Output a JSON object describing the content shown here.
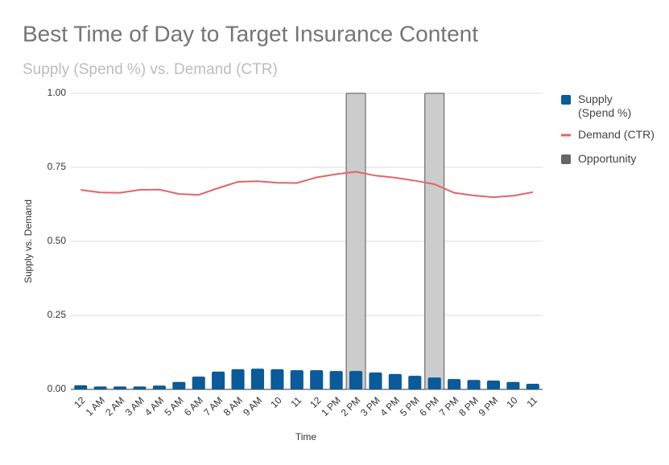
{
  "chart_data": {
    "type": "combo",
    "title": "Best Time of Day to Target Insurance Content",
    "subtitle": "Supply (Spend %) vs. Demand (CTR)",
    "x_label": "Time",
    "y_label": "Supply vs. Demand",
    "categories": [
      "12",
      "1 AM",
      "2 AM",
      "3 AM",
      "4 AM",
      "5 AM",
      "6 AM",
      "7 AM",
      "8 AM",
      "9 AM",
      "10",
      "11",
      "12",
      "1 PM",
      "2 PM",
      "3 PM",
      "4 PM",
      "5 PM",
      "6 PM",
      "7 PM",
      "8 PM",
      "9 PM",
      "10",
      "11"
    ],
    "series": [
      {
        "name": "Supply (Spend %)",
        "type": "bar",
        "color": "#0b5a99",
        "values": [
          0.014,
          0.01,
          0.01,
          0.01,
          0.013,
          0.025,
          0.043,
          0.06,
          0.068,
          0.07,
          0.068,
          0.065,
          0.065,
          0.062,
          0.062,
          0.057,
          0.052,
          0.046,
          0.04,
          0.035,
          0.032,
          0.03,
          0.025,
          0.019
        ]
      },
      {
        "name": "Demand (CTR)",
        "type": "line",
        "color": "#e06666",
        "values": [
          0.674,
          0.665,
          0.664,
          0.674,
          0.675,
          0.66,
          0.657,
          0.68,
          0.701,
          0.703,
          0.698,
          0.697,
          0.716,
          0.727,
          0.735,
          0.722,
          0.715,
          0.705,
          0.693,
          0.664,
          0.655,
          0.649,
          0.654,
          0.666
        ]
      },
      {
        "name": "Opportunity",
        "type": "bar",
        "color": "#cccccc",
        "values": [
          null,
          null,
          null,
          null,
          null,
          null,
          null,
          null,
          null,
          null,
          null,
          null,
          null,
          null,
          1,
          null,
          null,
          null,
          1,
          null,
          null,
          null,
          null,
          null
        ]
      }
    ],
    "ylim": [
      0,
      1
    ],
    "yticks": [
      {
        "value": 0,
        "label": "0.00"
      },
      {
        "value": 0.25,
        "label": "0.25"
      },
      {
        "value": 0.5,
        "label": "0.50"
      },
      {
        "value": 0.75,
        "label": "0.75"
      },
      {
        "value": 1,
        "label": "1.00"
      }
    ],
    "grid": true,
    "legend": "right"
  }
}
